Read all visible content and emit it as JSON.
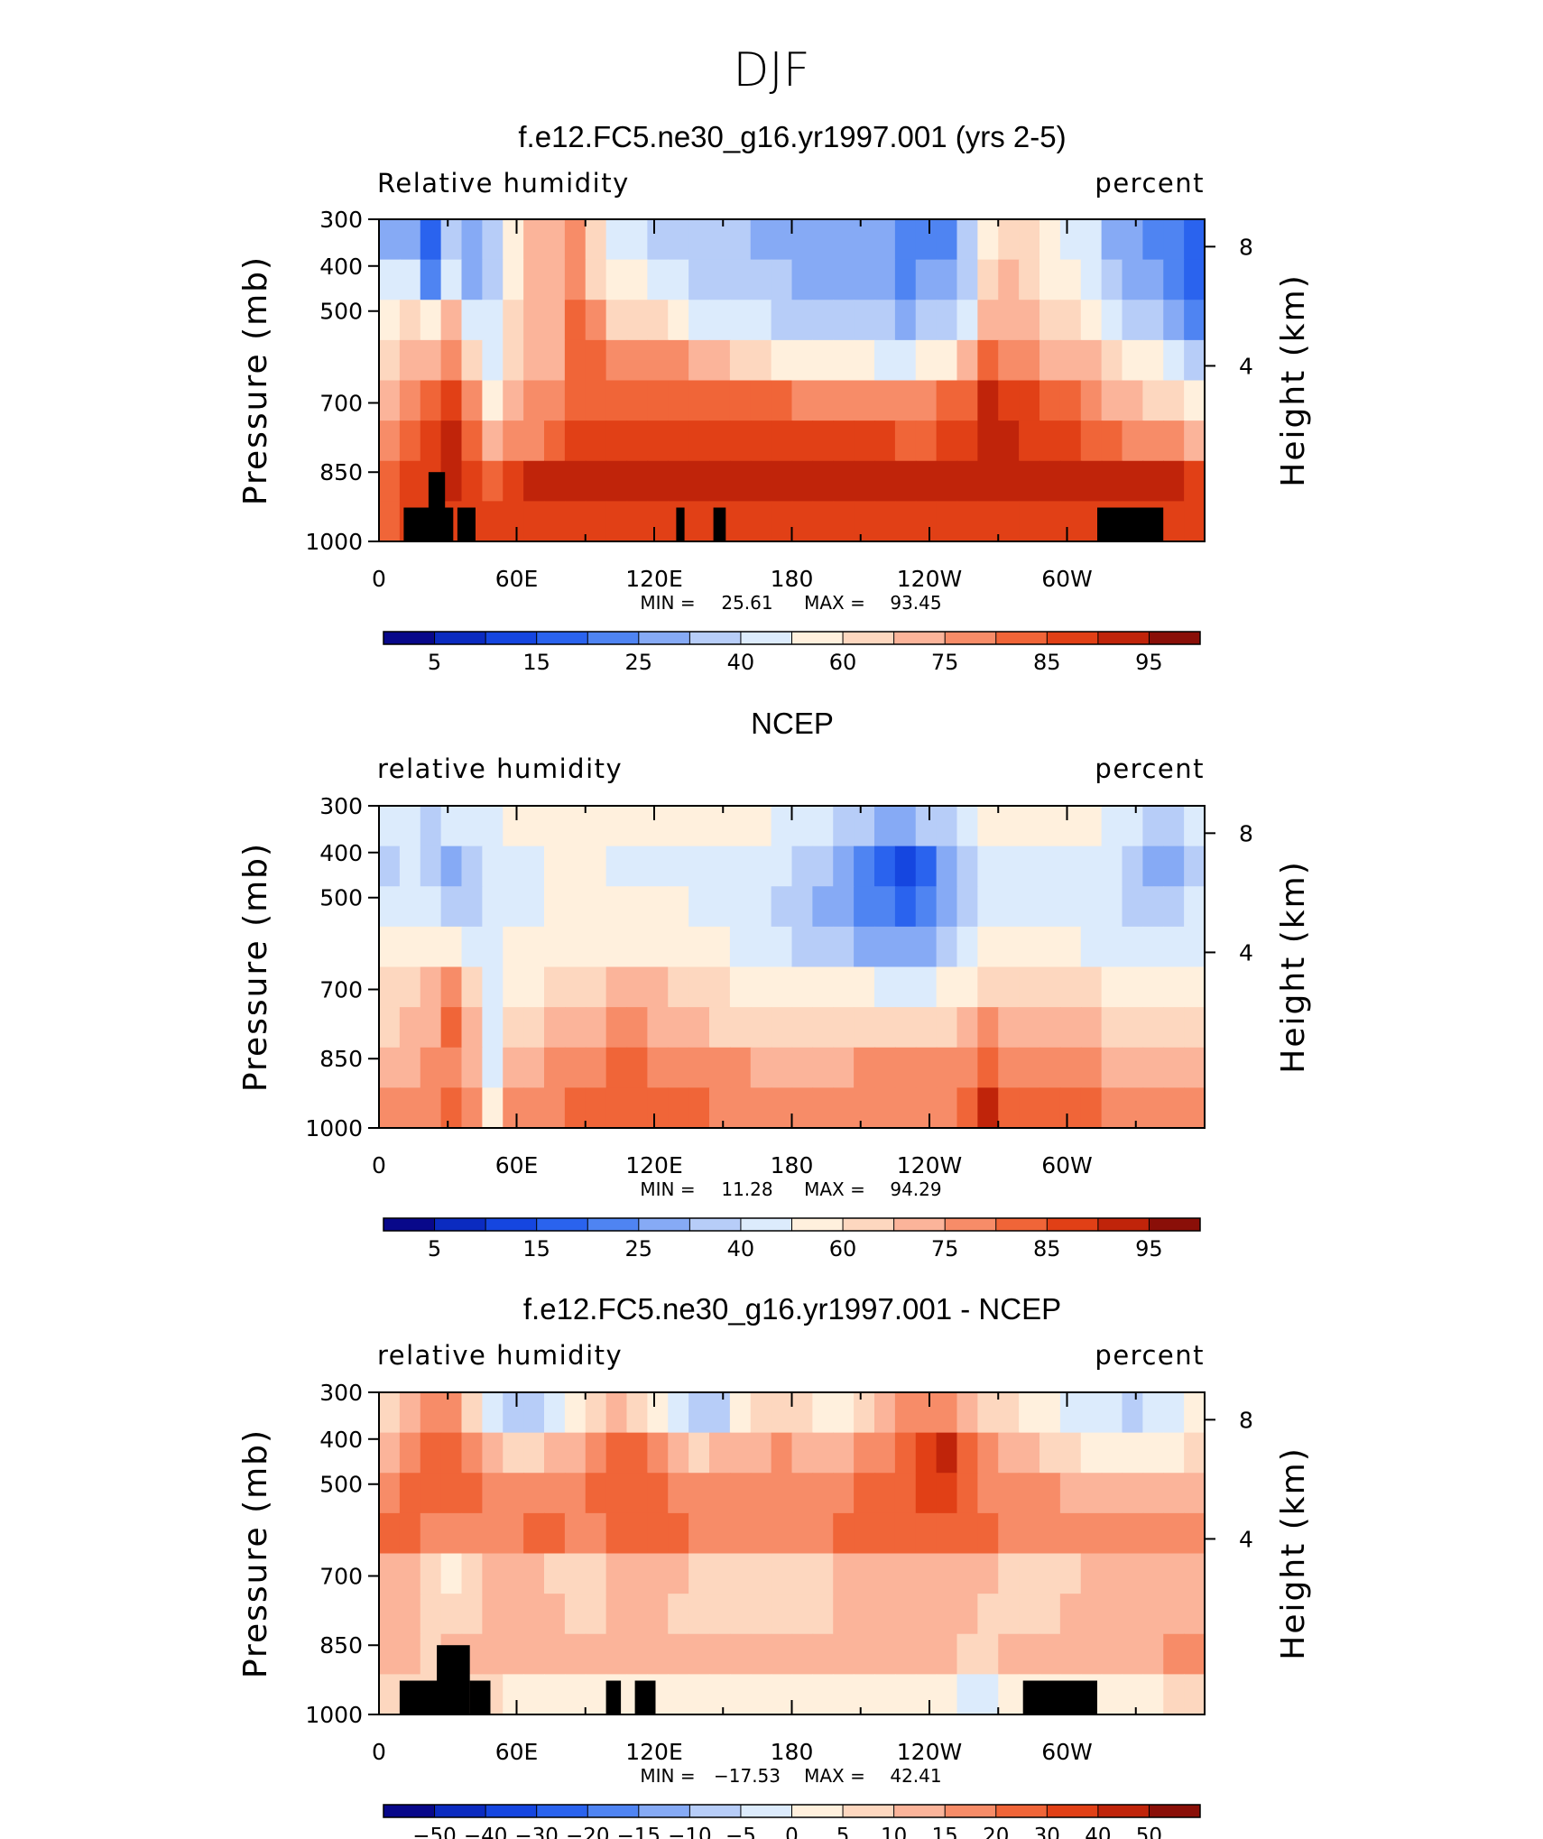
{
  "figure": {
    "title": "DJF"
  },
  "chart_data": [
    {
      "type": "heatmap",
      "title": "f.e12.FC5.ne30_g16.yr1997.001 (yrs 2-5)",
      "left_label": "Relative humidity",
      "right_label": "percent",
      "ylabel": "Pressure (mb)",
      "ylabel_right": "Height (km)",
      "x_ticks": [
        "0",
        "60E",
        "120E",
        "180",
        "120W",
        "60W"
      ],
      "y_ticks": [
        "300",
        "400",
        "500",
        "700",
        "850",
        "1000"
      ],
      "y_ticks_right": [
        "8",
        "4"
      ],
      "stats": {
        "min_label": "MIN =",
        "min": "25.61",
        "max_label": "MAX =",
        "max": "93.45"
      },
      "colorbar": {
        "labels": [
          "5",
          "15",
          "25",
          "40",
          "60",
          "75",
          "85",
          "95"
        ],
        "colors": [
          "#08088a",
          "#0b2bc0",
          "#1546e0",
          "#2a63ee",
          "#4f84f2",
          "#86aaf5",
          "#b7cdf8",
          "#dcebfc",
          "#fff0dd",
          "#fdd7bf",
          "#fbb49a",
          "#f78c68",
          "#f06538",
          "#e14016",
          "#c0240a",
          "#8a0f08"
        ]
      },
      "grid": [
        [
          5,
          5,
          3,
          6,
          5,
          6,
          8,
          10,
          10,
          11,
          9,
          7,
          7,
          6,
          6,
          6,
          6,
          6,
          5,
          5,
          5,
          5,
          5,
          5,
          5,
          4,
          4,
          4,
          6,
          8,
          9,
          9,
          8,
          7,
          7,
          5,
          5,
          4,
          4,
          3
        ],
        [
          7,
          7,
          4,
          7,
          5,
          6,
          8,
          10,
          10,
          11,
          9,
          8,
          8,
          7,
          7,
          6,
          6,
          6,
          6,
          6,
          5,
          5,
          5,
          5,
          5,
          4,
          5,
          5,
          6,
          9,
          10,
          9,
          8,
          8,
          7,
          6,
          5,
          5,
          4,
          3
        ],
        [
          8,
          9,
          8,
          10,
          7,
          7,
          9,
          10,
          10,
          12,
          11,
          9,
          9,
          9,
          8,
          7,
          7,
          7,
          7,
          6,
          6,
          6,
          6,
          6,
          6,
          5,
          6,
          6,
          7,
          10,
          10,
          10,
          9,
          9,
          8,
          7,
          6,
          6,
          5,
          4
        ],
        [
          9,
          10,
          10,
          11,
          9,
          7,
          9,
          10,
          10,
          12,
          12,
          11,
          11,
          11,
          11,
          10,
          10,
          9,
          9,
          8,
          8,
          8,
          8,
          8,
          7,
          7,
          8,
          8,
          10,
          12,
          11,
          11,
          10,
          10,
          10,
          9,
          8,
          8,
          7,
          6
        ],
        [
          10,
          11,
          12,
          13,
          11,
          8,
          10,
          11,
          11,
          12,
          12,
          12,
          12,
          12,
          12,
          12,
          12,
          12,
          12,
          12,
          11,
          11,
          11,
          11,
          11,
          11,
          11,
          12,
          12,
          14,
          13,
          13,
          12,
          12,
          11,
          10,
          10,
          9,
          9,
          8
        ],
        [
          11,
          12,
          13,
          14,
          12,
          10,
          11,
          11,
          12,
          13,
          13,
          13,
          13,
          13,
          13,
          13,
          13,
          13,
          13,
          13,
          13,
          13,
          13,
          13,
          13,
          12,
          12,
          13,
          13,
          14,
          14,
          13,
          13,
          13,
          12,
          12,
          11,
          11,
          11,
          10
        ],
        [
          12,
          13,
          13,
          14,
          13,
          12,
          13,
          14,
          14,
          14,
          14,
          14,
          14,
          14,
          14,
          14,
          14,
          14,
          14,
          14,
          14,
          14,
          14,
          14,
          14,
          14,
          14,
          14,
          14,
          14,
          14,
          14,
          14,
          14,
          14,
          14,
          14,
          14,
          14,
          13
        ],
        [
          12,
          13,
          13,
          13,
          13,
          13,
          13,
          13,
          13,
          13,
          13,
          13,
          13,
          13,
          13,
          13,
          13,
          13,
          13,
          13,
          13,
          13,
          13,
          13,
          13,
          13,
          13,
          13,
          13,
          13,
          13,
          13,
          13,
          13,
          13,
          13,
          13,
          13,
          13,
          13
        ]
      ],
      "masks": [
        [
          0.03,
          1.0,
          0.06,
          0.0
        ],
        [
          0.06,
          0.66,
          0.02,
          0.0
        ],
        [
          0.095,
          1.0,
          0.022,
          0.0
        ],
        [
          0.36,
          1.0,
          0.01,
          0.0
        ],
        [
          0.405,
          1.0,
          0.015,
          0.0
        ],
        [
          0.87,
          1.0,
          0.08,
          0.0
        ]
      ]
    },
    {
      "type": "heatmap",
      "title": "NCEP",
      "left_label": "relative humidity",
      "right_label": "percent",
      "ylabel": "Pressure (mb)",
      "ylabel_right": "Height (km)",
      "x_ticks": [
        "0",
        "60E",
        "120E",
        "180",
        "120W",
        "60W"
      ],
      "y_ticks": [
        "300",
        "400",
        "500",
        "700",
        "850",
        "1000"
      ],
      "y_ticks_right": [
        "8",
        "4"
      ],
      "stats": {
        "min_label": "MIN =",
        "min": "11.28",
        "max_label": "MAX =",
        "max": "94.29"
      },
      "colorbar": {
        "labels": [
          "5",
          "15",
          "25",
          "40",
          "60",
          "75",
          "85",
          "95"
        ],
        "colors": [
          "#08088a",
          "#0b2bc0",
          "#1546e0",
          "#2a63ee",
          "#4f84f2",
          "#86aaf5",
          "#b7cdf8",
          "#dcebfc",
          "#fff0dd",
          "#fdd7bf",
          "#fbb49a",
          "#f78c68",
          "#f06538",
          "#e14016",
          "#c0240a",
          "#8a0f08"
        ]
      },
      "grid": [
        [
          7,
          7,
          6,
          7,
          7,
          7,
          8,
          8,
          8,
          8,
          8,
          8,
          8,
          8,
          8,
          8,
          8,
          8,
          8,
          7,
          7,
          7,
          6,
          6,
          5,
          5,
          6,
          6,
          7,
          8,
          8,
          8,
          8,
          8,
          8,
          7,
          7,
          6,
          6,
          7
        ],
        [
          6,
          7,
          6,
          5,
          6,
          7,
          7,
          7,
          8,
          8,
          8,
          7,
          7,
          7,
          7,
          7,
          7,
          7,
          7,
          7,
          6,
          6,
          5,
          4,
          3,
          2,
          3,
          5,
          6,
          7,
          7,
          7,
          7,
          7,
          7,
          7,
          6,
          5,
          5,
          6
        ],
        [
          7,
          7,
          7,
          6,
          6,
          7,
          7,
          7,
          8,
          8,
          8,
          8,
          8,
          8,
          8,
          7,
          7,
          7,
          7,
          6,
          6,
          5,
          5,
          4,
          4,
          3,
          4,
          5,
          6,
          7,
          7,
          7,
          7,
          7,
          7,
          7,
          6,
          6,
          6,
          7
        ],
        [
          8,
          8,
          8,
          8,
          7,
          7,
          8,
          8,
          8,
          8,
          8,
          8,
          8,
          8,
          8,
          8,
          8,
          7,
          7,
          7,
          6,
          6,
          6,
          5,
          5,
          5,
          5,
          6,
          7,
          8,
          8,
          8,
          8,
          8,
          7,
          7,
          7,
          7,
          7,
          7
        ],
        [
          9,
          9,
          10,
          11,
          9,
          7,
          8,
          8,
          9,
          9,
          9,
          10,
          10,
          10,
          9,
          9,
          9,
          8,
          8,
          8,
          8,
          8,
          8,
          8,
          7,
          7,
          7,
          8,
          8,
          9,
          9,
          9,
          9,
          9,
          9,
          8,
          8,
          8,
          8,
          8
        ],
        [
          9,
          10,
          10,
          12,
          10,
          7,
          9,
          9,
          10,
          10,
          10,
          11,
          11,
          10,
          10,
          10,
          9,
          9,
          9,
          9,
          9,
          9,
          9,
          9,
          9,
          9,
          9,
          9,
          10,
          11,
          10,
          10,
          10,
          10,
          10,
          9,
          9,
          9,
          9,
          9
        ],
        [
          10,
          10,
          11,
          11,
          10,
          7,
          10,
          10,
          11,
          11,
          11,
          12,
          12,
          11,
          11,
          11,
          11,
          11,
          10,
          10,
          10,
          10,
          10,
          11,
          11,
          11,
          11,
          11,
          11,
          12,
          11,
          11,
          11,
          11,
          11,
          10,
          10,
          10,
          10,
          10
        ],
        [
          11,
          11,
          11,
          12,
          11,
          8,
          11,
          11,
          11,
          12,
          12,
          12,
          12,
          12,
          12,
          12,
          11,
          11,
          11,
          11,
          11,
          11,
          11,
          11,
          11,
          11,
          11,
          11,
          12,
          14,
          12,
          12,
          12,
          12,
          12,
          11,
          11,
          11,
          11,
          11
        ]
      ],
      "masks": []
    },
    {
      "type": "heatmap",
      "title": "f.e12.FC5.ne30_g16.yr1997.001 - NCEP",
      "left_label": "relative humidity",
      "right_label": "percent",
      "ylabel": "Pressure (mb)",
      "ylabel_right": "Height (km)",
      "x_ticks": [
        "0",
        "60E",
        "120E",
        "180",
        "120W",
        "60W"
      ],
      "y_ticks": [
        "300",
        "400",
        "500",
        "700",
        "850",
        "1000"
      ],
      "y_ticks_right": [
        "8",
        "4"
      ],
      "stats": {
        "min_label": "MIN =",
        "min": "−17.53",
        "max_label": "MAX =",
        "max": "42.41"
      },
      "colorbar": {
        "labels": [
          "−50",
          "−40",
          "−30",
          "−20",
          "−15",
          "−10",
          "−5",
          "0",
          "5",
          "10",
          "15",
          "20",
          "30",
          "40",
          "50"
        ],
        "colors": [
          "#08088a",
          "#0b2bc0",
          "#1546e0",
          "#2a63ee",
          "#4f84f2",
          "#86aaf5",
          "#b7cdf8",
          "#dcebfc",
          "#fff0dd",
          "#fdd7bf",
          "#fbb49a",
          "#f78c68",
          "#f06538",
          "#e14016",
          "#c0240a",
          "#8a0f08"
        ]
      },
      "grid": [
        [
          9,
          10,
          11,
          11,
          9,
          7,
          6,
          6,
          7,
          8,
          9,
          10,
          9,
          8,
          7,
          6,
          6,
          8,
          9,
          9,
          9,
          8,
          8,
          9,
          10,
          11,
          11,
          11,
          10,
          9,
          9,
          8,
          8,
          7,
          7,
          7,
          6,
          7,
          7,
          8
        ],
        [
          10,
          11,
          12,
          12,
          11,
          10,
          9,
          9,
          10,
          10,
          11,
          12,
          12,
          11,
          10,
          9,
          10,
          10,
          10,
          11,
          10,
          10,
          10,
          11,
          11,
          12,
          13,
          14,
          12,
          11,
          10,
          10,
          9,
          9,
          8,
          8,
          8,
          8,
          8,
          9
        ],
        [
          11,
          12,
          12,
          12,
          12,
          11,
          11,
          11,
          11,
          11,
          12,
          12,
          12,
          12,
          11,
          11,
          11,
          11,
          11,
          11,
          11,
          11,
          11,
          12,
          12,
          12,
          13,
          13,
          12,
          11,
          11,
          11,
          11,
          10,
          10,
          10,
          10,
          10,
          10,
          10
        ],
        [
          12,
          12,
          11,
          11,
          11,
          11,
          11,
          12,
          12,
          11,
          11,
          12,
          12,
          12,
          12,
          11,
          11,
          11,
          11,
          11,
          11,
          11,
          12,
          12,
          12,
          12,
          12,
          12,
          12,
          12,
          11,
          11,
          11,
          11,
          11,
          11,
          11,
          11,
          11,
          11
        ],
        [
          10,
          10,
          9,
          8,
          9,
          10,
          10,
          10,
          9,
          9,
          9,
          10,
          10,
          10,
          10,
          9,
          9,
          9,
          9,
          9,
          9,
          9,
          10,
          10,
          10,
          10,
          10,
          10,
          10,
          10,
          9,
          9,
          9,
          9,
          10,
          10,
          10,
          10,
          10,
          10
        ],
        [
          10,
          10,
          9,
          9,
          9,
          10,
          10,
          10,
          10,
          9,
          9,
          10,
          10,
          10,
          9,
          9,
          9,
          9,
          9,
          9,
          9,
          9,
          10,
          10,
          10,
          10,
          10,
          10,
          10,
          9,
          9,
          9,
          9,
          10,
          10,
          10,
          10,
          10,
          10,
          10
        ],
        [
          10,
          10,
          9,
          10,
          10,
          10,
          10,
          10,
          10,
          10,
          10,
          10,
          10,
          10,
          10,
          10,
          10,
          10,
          10,
          10,
          10,
          10,
          10,
          10,
          10,
          10,
          10,
          10,
          9,
          9,
          10,
          10,
          10,
          10,
          10,
          10,
          10,
          10,
          11,
          11
        ],
        [
          9,
          9,
          9,
          9,
          9,
          9,
          8,
          8,
          8,
          8,
          8,
          8,
          8,
          8,
          8,
          8,
          8,
          8,
          8,
          8,
          8,
          8,
          8,
          8,
          8,
          8,
          8,
          8,
          7,
          7,
          8,
          8,
          8,
          8,
          8,
          8,
          8,
          8,
          9,
          9
        ]
      ],
      "masks": [
        [
          0.025,
          1.0,
          0.07,
          0.0
        ],
        [
          0.07,
          0.66,
          0.04,
          0.0
        ],
        [
          0.11,
          1.0,
          0.025,
          0.0
        ],
        [
          0.275,
          1.0,
          0.018,
          0.0
        ],
        [
          0.31,
          1.0,
          0.025,
          0.0
        ],
        [
          0.78,
          1.0,
          0.09,
          0.0
        ]
      ]
    }
  ]
}
